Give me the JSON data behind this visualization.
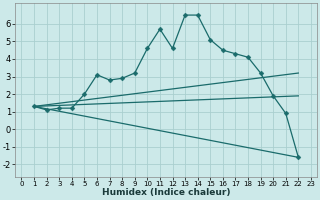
{
  "xlabel": "Humidex (Indice chaleur)",
  "xlim": [
    -0.5,
    23.5
  ],
  "ylim": [
    -2.7,
    7.2
  ],
  "yticks": [
    -2,
    -1,
    0,
    1,
    2,
    3,
    4,
    5,
    6
  ],
  "xticks": [
    0,
    1,
    2,
    3,
    4,
    5,
    6,
    7,
    8,
    9,
    10,
    11,
    12,
    13,
    14,
    15,
    16,
    17,
    18,
    19,
    20,
    21,
    22,
    23
  ],
  "xtick_labels": [
    "0",
    "1",
    "2",
    "3",
    "4",
    "5",
    "6",
    "7",
    "8",
    "9",
    "10",
    "11",
    "12",
    "13",
    "14",
    "15",
    "16",
    "17",
    "18",
    "19",
    "20",
    "21",
    "22",
    "23"
  ],
  "bg_color": "#cce9e9",
  "grid_color": "#aacfcf",
  "line_color": "#1a6b6b",
  "main_line": {
    "x": [
      1,
      2,
      3,
      4,
      5,
      6,
      7,
      8,
      9,
      10,
      11,
      12,
      13,
      14,
      15,
      16,
      17,
      18,
      19,
      20,
      21,
      22
    ],
    "y": [
      1.3,
      1.1,
      1.2,
      1.2,
      2.0,
      3.1,
      2.8,
      2.9,
      3.2,
      4.6,
      5.7,
      4.6,
      6.5,
      6.5,
      5.1,
      4.5,
      4.3,
      4.1,
      3.2,
      1.9,
      0.9,
      -1.6
    ]
  },
  "straight_lines": [
    {
      "x": [
        1,
        22
      ],
      "y": [
        1.3,
        3.2
      ]
    },
    {
      "x": [
        1,
        22
      ],
      "y": [
        1.3,
        1.9
      ]
    },
    {
      "x": [
        1,
        22
      ],
      "y": [
        1.3,
        -1.6
      ]
    }
  ]
}
